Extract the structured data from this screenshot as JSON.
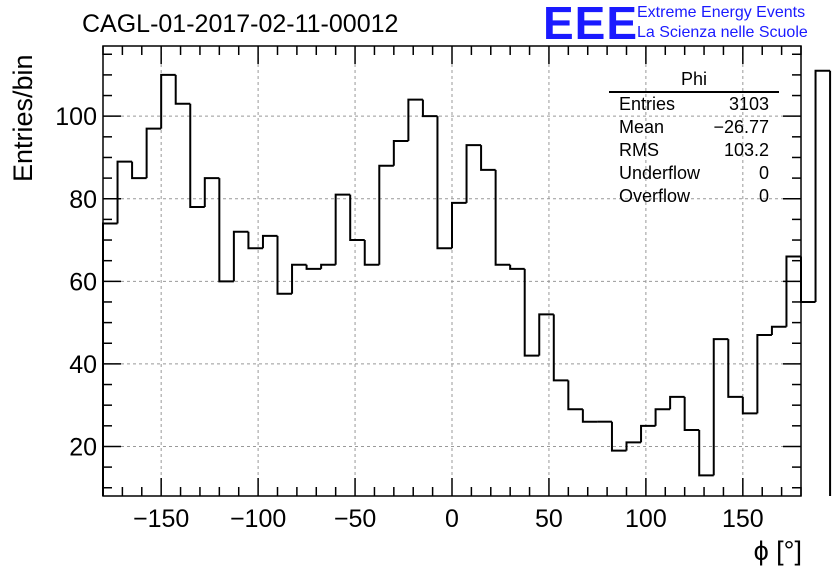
{
  "header": {
    "run_title": "CAGL-01-2017-02-11-00012",
    "logo_letters": "EEE",
    "logo_line1": "Extreme Energy Events",
    "logo_line2": "La Scienza nelle Scuole"
  },
  "stats_box": {
    "name": "Phi",
    "rows": [
      {
        "label": "Entries",
        "value": "3103"
      },
      {
        "label": "Mean",
        "value": "−26.77"
      },
      {
        "label": "RMS",
        "value": "103.2"
      },
      {
        "label": "Underflow",
        "value": "0"
      },
      {
        "label": "Overflow",
        "value": "0"
      }
    ]
  },
  "chart_data": {
    "type": "bar",
    "style": "step-histogram",
    "title": "CAGL-01-2017-02-11-00012",
    "xlabel": "ϕ [°]",
    "ylabel": "Entries/bin",
    "xlim": [
      -180,
      180
    ],
    "ylim": [
      8,
      117
    ],
    "bin_width": 7.5,
    "x_ticks": [
      -150,
      -100,
      -50,
      0,
      50,
      100,
      150
    ],
    "x_tick_labels": [
      "−150",
      "−100",
      "−50",
      "0",
      "50",
      "100",
      "150"
    ],
    "y_ticks": [
      20,
      40,
      60,
      80,
      100
    ],
    "grid": true,
    "line_color": "#000000",
    "grid_color": "#999999",
    "values": [
      74,
      89,
      85,
      97,
      110,
      103,
      78,
      85,
      60,
      72,
      68,
      71,
      57,
      64,
      63,
      64,
      81,
      70,
      64,
      88,
      94,
      104,
      100,
      68,
      79,
      93,
      87,
      64,
      63,
      42,
      52,
      36,
      29,
      26,
      26,
      19,
      21,
      25,
      29,
      32,
      24,
      13,
      46,
      32,
      28,
      47,
      49,
      66,
      55,
      111
    ]
  }
}
